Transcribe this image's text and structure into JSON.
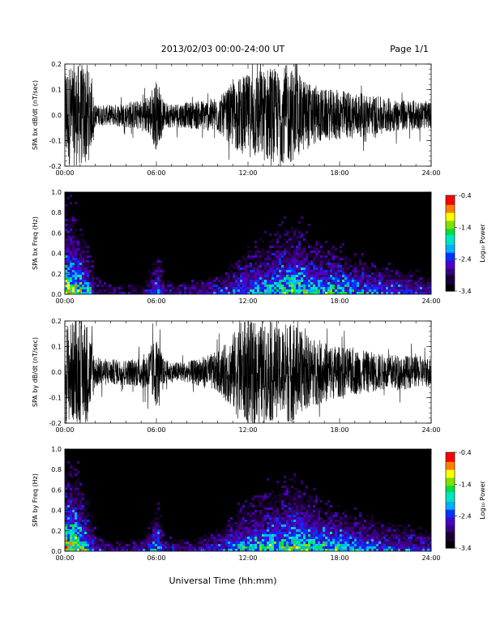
{
  "header": {
    "title": "2013/02/03  00:00-24:00 UT",
    "page": "Page 1/1"
  },
  "xaxis": {
    "label": "Universal Time (hh:mm)",
    "ticks": [
      "00:00",
      "06:00",
      "12:00",
      "18:00",
      "24:00"
    ]
  },
  "colors": {
    "trace": "#000000",
    "spectrogram_background": "#000000",
    "colormap": [
      "#000000",
      "#1a0033",
      "#3a007a",
      "#4b00c8",
      "#0033ff",
      "#00b0ff",
      "#00e5c0",
      "#00e040",
      "#80e000",
      "#ffff00",
      "#ff8000",
      "#ff0000"
    ]
  },
  "chart_data": [
    {
      "type": "line",
      "ylabel": "SPA bx dB/dt (nT/sec)",
      "xlim_hours": [
        0,
        24
      ],
      "ylim": [
        -0.2,
        0.2
      ],
      "yticks": [
        "-0.2",
        "-0.1",
        "0.0",
        "0.1",
        "0.2"
      ],
      "x_hours": [
        0,
        0.5,
        1,
        1.5,
        2,
        3,
        4,
        5,
        5.5,
        6,
        6.5,
        7,
        8,
        9,
        10,
        10.5,
        11,
        11.5,
        12,
        12.5,
        13,
        13.5,
        14,
        14.5,
        15,
        15.5,
        16,
        17,
        18,
        19,
        20,
        21,
        22,
        23,
        24
      ],
      "amplitude": [
        0.2,
        0.2,
        0.2,
        0.2,
        0.04,
        0.04,
        0.05,
        0.06,
        0.08,
        0.14,
        0.05,
        0.05,
        0.05,
        0.06,
        0.07,
        0.09,
        0.13,
        0.15,
        0.16,
        0.18,
        0.18,
        0.2,
        0.17,
        0.2,
        0.18,
        0.15,
        0.13,
        0.1,
        0.1,
        0.09,
        0.08,
        0.07,
        0.06,
        0.06,
        0.05
      ]
    },
    {
      "type": "heatmap",
      "ylabel": "SPA bx Freq (Hz)",
      "colorbar_label": "Log₁₀ Power",
      "xlim_hours": [
        0,
        24
      ],
      "ylim": [
        0,
        1.0
      ],
      "yticks": [
        "0.0",
        "0.2",
        "0.4",
        "0.6",
        "0.8",
        "1.0"
      ],
      "colorbar_range": [
        -3.4,
        -0.4
      ],
      "colorbar_ticks": [
        "-0.4",
        "-1.4",
        "-2.4",
        "-3.4"
      ],
      "x_hours": [
        0,
        0.5,
        1,
        1.5,
        2,
        3,
        4,
        5,
        5.5,
        6,
        6.5,
        7,
        8,
        9,
        10,
        10.5,
        11,
        11.5,
        12,
        12.5,
        13,
        13.5,
        14,
        14.5,
        15,
        15.5,
        16,
        17,
        18,
        19,
        20,
        21,
        22,
        23,
        24
      ],
      "intensity": [
        1.0,
        0.9,
        0.75,
        0.6,
        0.25,
        0.2,
        0.2,
        0.25,
        0.35,
        0.55,
        0.25,
        0.25,
        0.3,
        0.35,
        0.4,
        0.45,
        0.5,
        0.55,
        0.6,
        0.62,
        0.65,
        0.7,
        0.72,
        0.75,
        0.78,
        0.75,
        0.72,
        0.68,
        0.62,
        0.55,
        0.5,
        0.45,
        0.42,
        0.4,
        0.38
      ],
      "extent_hz": [
        0.95,
        0.9,
        0.7,
        0.5,
        0.2,
        0.1,
        0.1,
        0.12,
        0.25,
        0.5,
        0.15,
        0.12,
        0.12,
        0.15,
        0.2,
        0.25,
        0.35,
        0.45,
        0.5,
        0.55,
        0.6,
        0.65,
        0.7,
        0.75,
        0.8,
        0.7,
        0.6,
        0.5,
        0.45,
        0.4,
        0.35,
        0.3,
        0.25,
        0.22,
        0.2
      ]
    },
    {
      "type": "line",
      "ylabel": "SPA by dB/dt (nT/sec)",
      "xlim_hours": [
        0,
        24
      ],
      "ylim": [
        -0.2,
        0.2
      ],
      "yticks": [
        "-0.2",
        "-0.1",
        "0.0",
        "0.1",
        "0.2"
      ],
      "x_hours": [
        0,
        0.5,
        1,
        1.5,
        2,
        3,
        4,
        5,
        5.5,
        6,
        6.5,
        7,
        8,
        9,
        10,
        10.5,
        11,
        11.5,
        12,
        12.5,
        13,
        13.5,
        14,
        14.5,
        15,
        15.5,
        16,
        17,
        18,
        19,
        20,
        21,
        22,
        23,
        24
      ],
      "amplitude": [
        0.2,
        0.2,
        0.2,
        0.2,
        0.06,
        0.05,
        0.05,
        0.06,
        0.09,
        0.14,
        0.05,
        0.04,
        0.04,
        0.06,
        0.08,
        0.11,
        0.15,
        0.2,
        0.2,
        0.2,
        0.18,
        0.2,
        0.17,
        0.2,
        0.2,
        0.16,
        0.14,
        0.12,
        0.1,
        0.09,
        0.08,
        0.07,
        0.07,
        0.06,
        0.06
      ]
    },
    {
      "type": "heatmap",
      "ylabel": "SPA by Freq (Hz)",
      "colorbar_label": "Log₁₀ Power",
      "xlim_hours": [
        0,
        24
      ],
      "ylim": [
        0,
        1.0
      ],
      "yticks": [
        "0.0",
        "0.2",
        "0.4",
        "0.6",
        "0.8",
        "1.0"
      ],
      "colorbar_range": [
        -3.4,
        -0.4
      ],
      "colorbar_ticks": [
        "-0.4",
        "-1.4",
        "-2.4",
        "-3.4"
      ],
      "x_hours": [
        0,
        0.5,
        1,
        1.5,
        2,
        3,
        4,
        5,
        5.5,
        6,
        6.5,
        7,
        8,
        9,
        10,
        10.5,
        11,
        11.5,
        12,
        12.5,
        13,
        13.5,
        14,
        14.5,
        15,
        15.5,
        16,
        17,
        18,
        19,
        20,
        21,
        22,
        23,
        24
      ],
      "intensity": [
        1.0,
        0.95,
        0.8,
        0.6,
        0.3,
        0.25,
        0.25,
        0.3,
        0.4,
        0.6,
        0.3,
        0.28,
        0.3,
        0.35,
        0.42,
        0.48,
        0.55,
        0.62,
        0.65,
        0.68,
        0.7,
        0.72,
        0.75,
        0.78,
        0.82,
        0.78,
        0.74,
        0.7,
        0.65,
        0.58,
        0.52,
        0.48,
        0.45,
        0.42,
        0.4
      ],
      "extent_hz": [
        0.95,
        0.95,
        0.75,
        0.5,
        0.2,
        0.1,
        0.1,
        0.12,
        0.25,
        0.55,
        0.15,
        0.12,
        0.12,
        0.15,
        0.22,
        0.28,
        0.4,
        0.5,
        0.55,
        0.58,
        0.62,
        0.68,
        0.72,
        0.78,
        0.85,
        0.72,
        0.62,
        0.5,
        0.45,
        0.4,
        0.35,
        0.3,
        0.26,
        0.23,
        0.2
      ]
    }
  ]
}
